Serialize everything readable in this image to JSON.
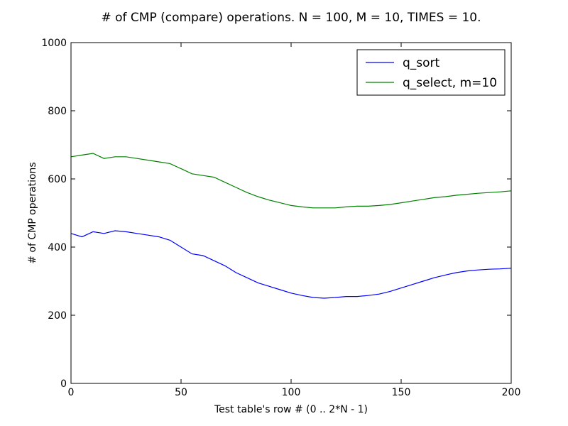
{
  "chart_data": {
    "type": "line",
    "title": "# of CMP (compare) operations. N = 100, M = 10, TIMES = 10.",
    "xlabel": "Test table's row # (0 .. 2*N - 1)",
    "ylabel": "# of CMP operations",
    "xlim": [
      0,
      200
    ],
    "ylim": [
      0,
      1000
    ],
    "xticks": [
      0,
      50,
      100,
      150,
      200
    ],
    "yticks": [
      0,
      200,
      400,
      600,
      800,
      1000
    ],
    "xtick_labels": [
      "0",
      "50",
      "100",
      "150",
      "200"
    ],
    "ytick_labels": [
      "0",
      "200",
      "400",
      "600",
      "800",
      "1000"
    ],
    "legend_position": "top-right",
    "grid": false,
    "series": [
      {
        "name": "q_sort",
        "color": "#0000ff",
        "x": [
          0,
          5,
          10,
          15,
          20,
          25,
          30,
          35,
          40,
          45,
          50,
          55,
          60,
          65,
          70,
          75,
          80,
          85,
          90,
          95,
          100,
          105,
          110,
          115,
          120,
          125,
          130,
          135,
          140,
          145,
          150,
          155,
          160,
          165,
          170,
          175,
          180,
          185,
          190,
          195,
          200
        ],
        "y": [
          440,
          430,
          445,
          440,
          448,
          445,
          440,
          435,
          430,
          420,
          400,
          380,
          375,
          360,
          345,
          325,
          310,
          295,
          285,
          275,
          265,
          258,
          252,
          250,
          252,
          255,
          255,
          258,
          262,
          270,
          280,
          290,
          300,
          310,
          318,
          325,
          330,
          333,
          335,
          336,
          338
        ]
      },
      {
        "name": "q_select, m=10",
        "color": "#008000",
        "x": [
          0,
          5,
          10,
          15,
          20,
          25,
          30,
          35,
          40,
          45,
          50,
          55,
          60,
          65,
          70,
          75,
          80,
          85,
          90,
          95,
          100,
          105,
          110,
          115,
          120,
          125,
          130,
          135,
          140,
          145,
          150,
          155,
          160,
          165,
          170,
          175,
          180,
          185,
          190,
          195,
          200
        ],
        "y": [
          665,
          670,
          675,
          660,
          665,
          665,
          660,
          655,
          650,
          645,
          630,
          615,
          610,
          605,
          590,
          575,
          560,
          548,
          538,
          530,
          522,
          518,
          515,
          515,
          515,
          518,
          520,
          520,
          522,
          525,
          530,
          535,
          540,
          545,
          548,
          552,
          555,
          558,
          560,
          562,
          565
        ]
      }
    ]
  }
}
